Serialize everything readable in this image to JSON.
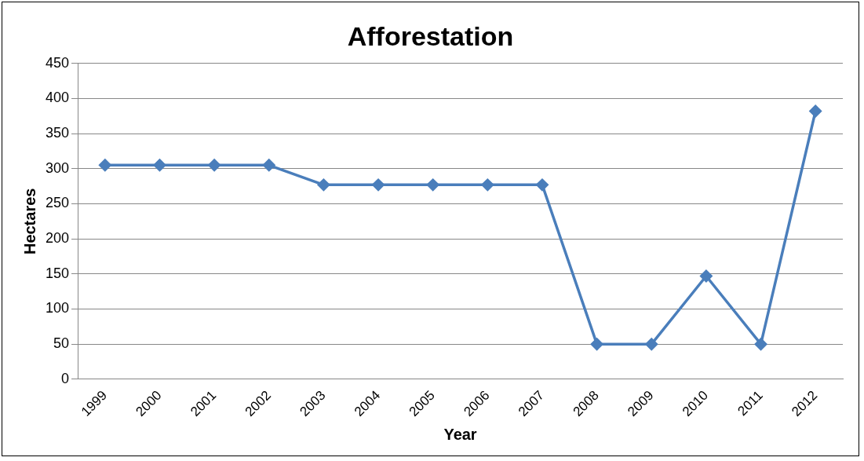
{
  "chart_data": {
    "type": "line",
    "title": "Afforestation",
    "xlabel": "Year",
    "ylabel": "Hectares",
    "categories": [
      "1999",
      "2000",
      "2001",
      "2002",
      "2003",
      "2004",
      "2005",
      "2006",
      "2007",
      "2008",
      "2009",
      "2010",
      "2011",
      "2012"
    ],
    "series": [
      {
        "color": "#4a7ebb",
        "values": [
          305,
          305,
          305,
          305,
          277,
          277,
          277,
          277,
          277,
          50,
          50,
          147,
          50,
          382
        ]
      }
    ],
    "ylim": [
      0,
      450
    ],
    "yticks": [
      0,
      50,
      100,
      150,
      200,
      250,
      300,
      350,
      400,
      450
    ],
    "grid": "y",
    "legend": false,
    "marker": "diamond",
    "line_style": "solid"
  }
}
